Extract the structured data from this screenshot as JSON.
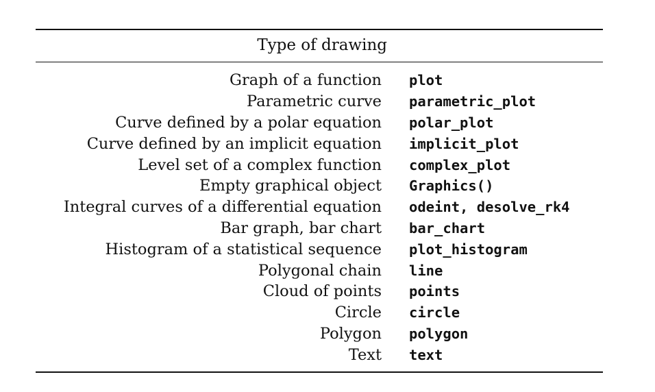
{
  "table": {
    "header": "Type of drawing",
    "rows": [
      {
        "description": "Graph of a function",
        "command": "plot"
      },
      {
        "description": "Parametric curve",
        "command": "parametric_plot"
      },
      {
        "description": "Curve defined by a polar equation",
        "command": "polar_plot"
      },
      {
        "description": "Curve defined by an implicit equation",
        "command": "implicit_plot"
      },
      {
        "description": "Level set of a complex function",
        "command": "complex_plot"
      },
      {
        "description": "Empty graphical object",
        "command": "Graphics()"
      },
      {
        "description": "Integral curves of a differential equation",
        "command": "odeint, desolve_rk4"
      },
      {
        "description": "Bar graph, bar chart",
        "command": "bar_chart"
      },
      {
        "description": "Histogram of a statistical sequence",
        "command": "plot_histogram"
      },
      {
        "description": "Polygonal chain",
        "command": "line"
      },
      {
        "description": "Cloud of points",
        "command": "points"
      },
      {
        "description": "Circle",
        "command": "circle"
      },
      {
        "description": "Polygon",
        "command": "polygon"
      },
      {
        "description": "Text",
        "command": "text"
      }
    ]
  }
}
